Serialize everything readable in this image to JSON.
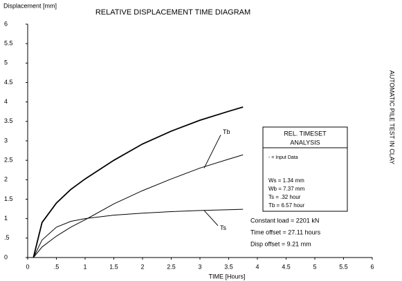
{
  "chart_data": {
    "type": "line",
    "title": "RELATIVE DISPLACEMENT TIME DIAGRAM",
    "y_label": "Displacement [mm]",
    "x_label": "TIME [Hours]",
    "side_label": "AUTOMATIC PILE TEST IN CLAY",
    "x": [
      0.1,
      0.25,
      0.5,
      0.75,
      1,
      1.5,
      2,
      2.5,
      3,
      3.5,
      3.75
    ],
    "series": [
      {
        "color": "#000",
        "values": [
          0,
          0.9,
          1.4,
          1.75,
          2.02,
          2.5,
          2.92,
          3.25,
          3.53,
          3.76,
          3.87
        ]
      },
      {
        "name": "Tb",
        "color": "#000",
        "values": [
          0,
          0.27,
          0.55,
          0.78,
          0.97,
          1.38,
          1.72,
          2.02,
          2.3,
          2.53,
          2.64
        ]
      },
      {
        "name": "Ts",
        "color": "#000",
        "values": [
          0,
          0.45,
          0.78,
          0.93,
          1.0,
          1.09,
          1.14,
          1.18,
          1.21,
          1.23,
          1.24
        ]
      }
    ],
    "xlim": [
      0,
      6
    ],
    "xticks": [
      0,
      {
        "value": 0.5,
        "label": ".5"
      },
      1,
      1.5,
      2,
      2.5,
      3,
      3.5,
      4,
      4.5,
      5,
      5.5,
      6
    ],
    "ylim": [
      0,
      6
    ],
    "yticks": [
      0,
      {
        "value": 0.5,
        "label": ".5"
      },
      1,
      1.5,
      2,
      2.5,
      3,
      3.5,
      4,
      4.5,
      5,
      5.5,
      6
    ],
    "info_box": {
      "title": [
        "REL. TIMESET",
        "ANALYSIS"
      ],
      "legend": "- = Input Data",
      "lines": [
        "Ws = 1.34 mm",
        "Wb = 7.37 mm",
        "Ts = .32 hour",
        "Tb = 6.57 hour"
      ]
    },
    "notes": [
      "Constant load = 2201 kN",
      "Time offset = 27.11 hours",
      "Disp offset =  9.21 mm"
    ]
  }
}
